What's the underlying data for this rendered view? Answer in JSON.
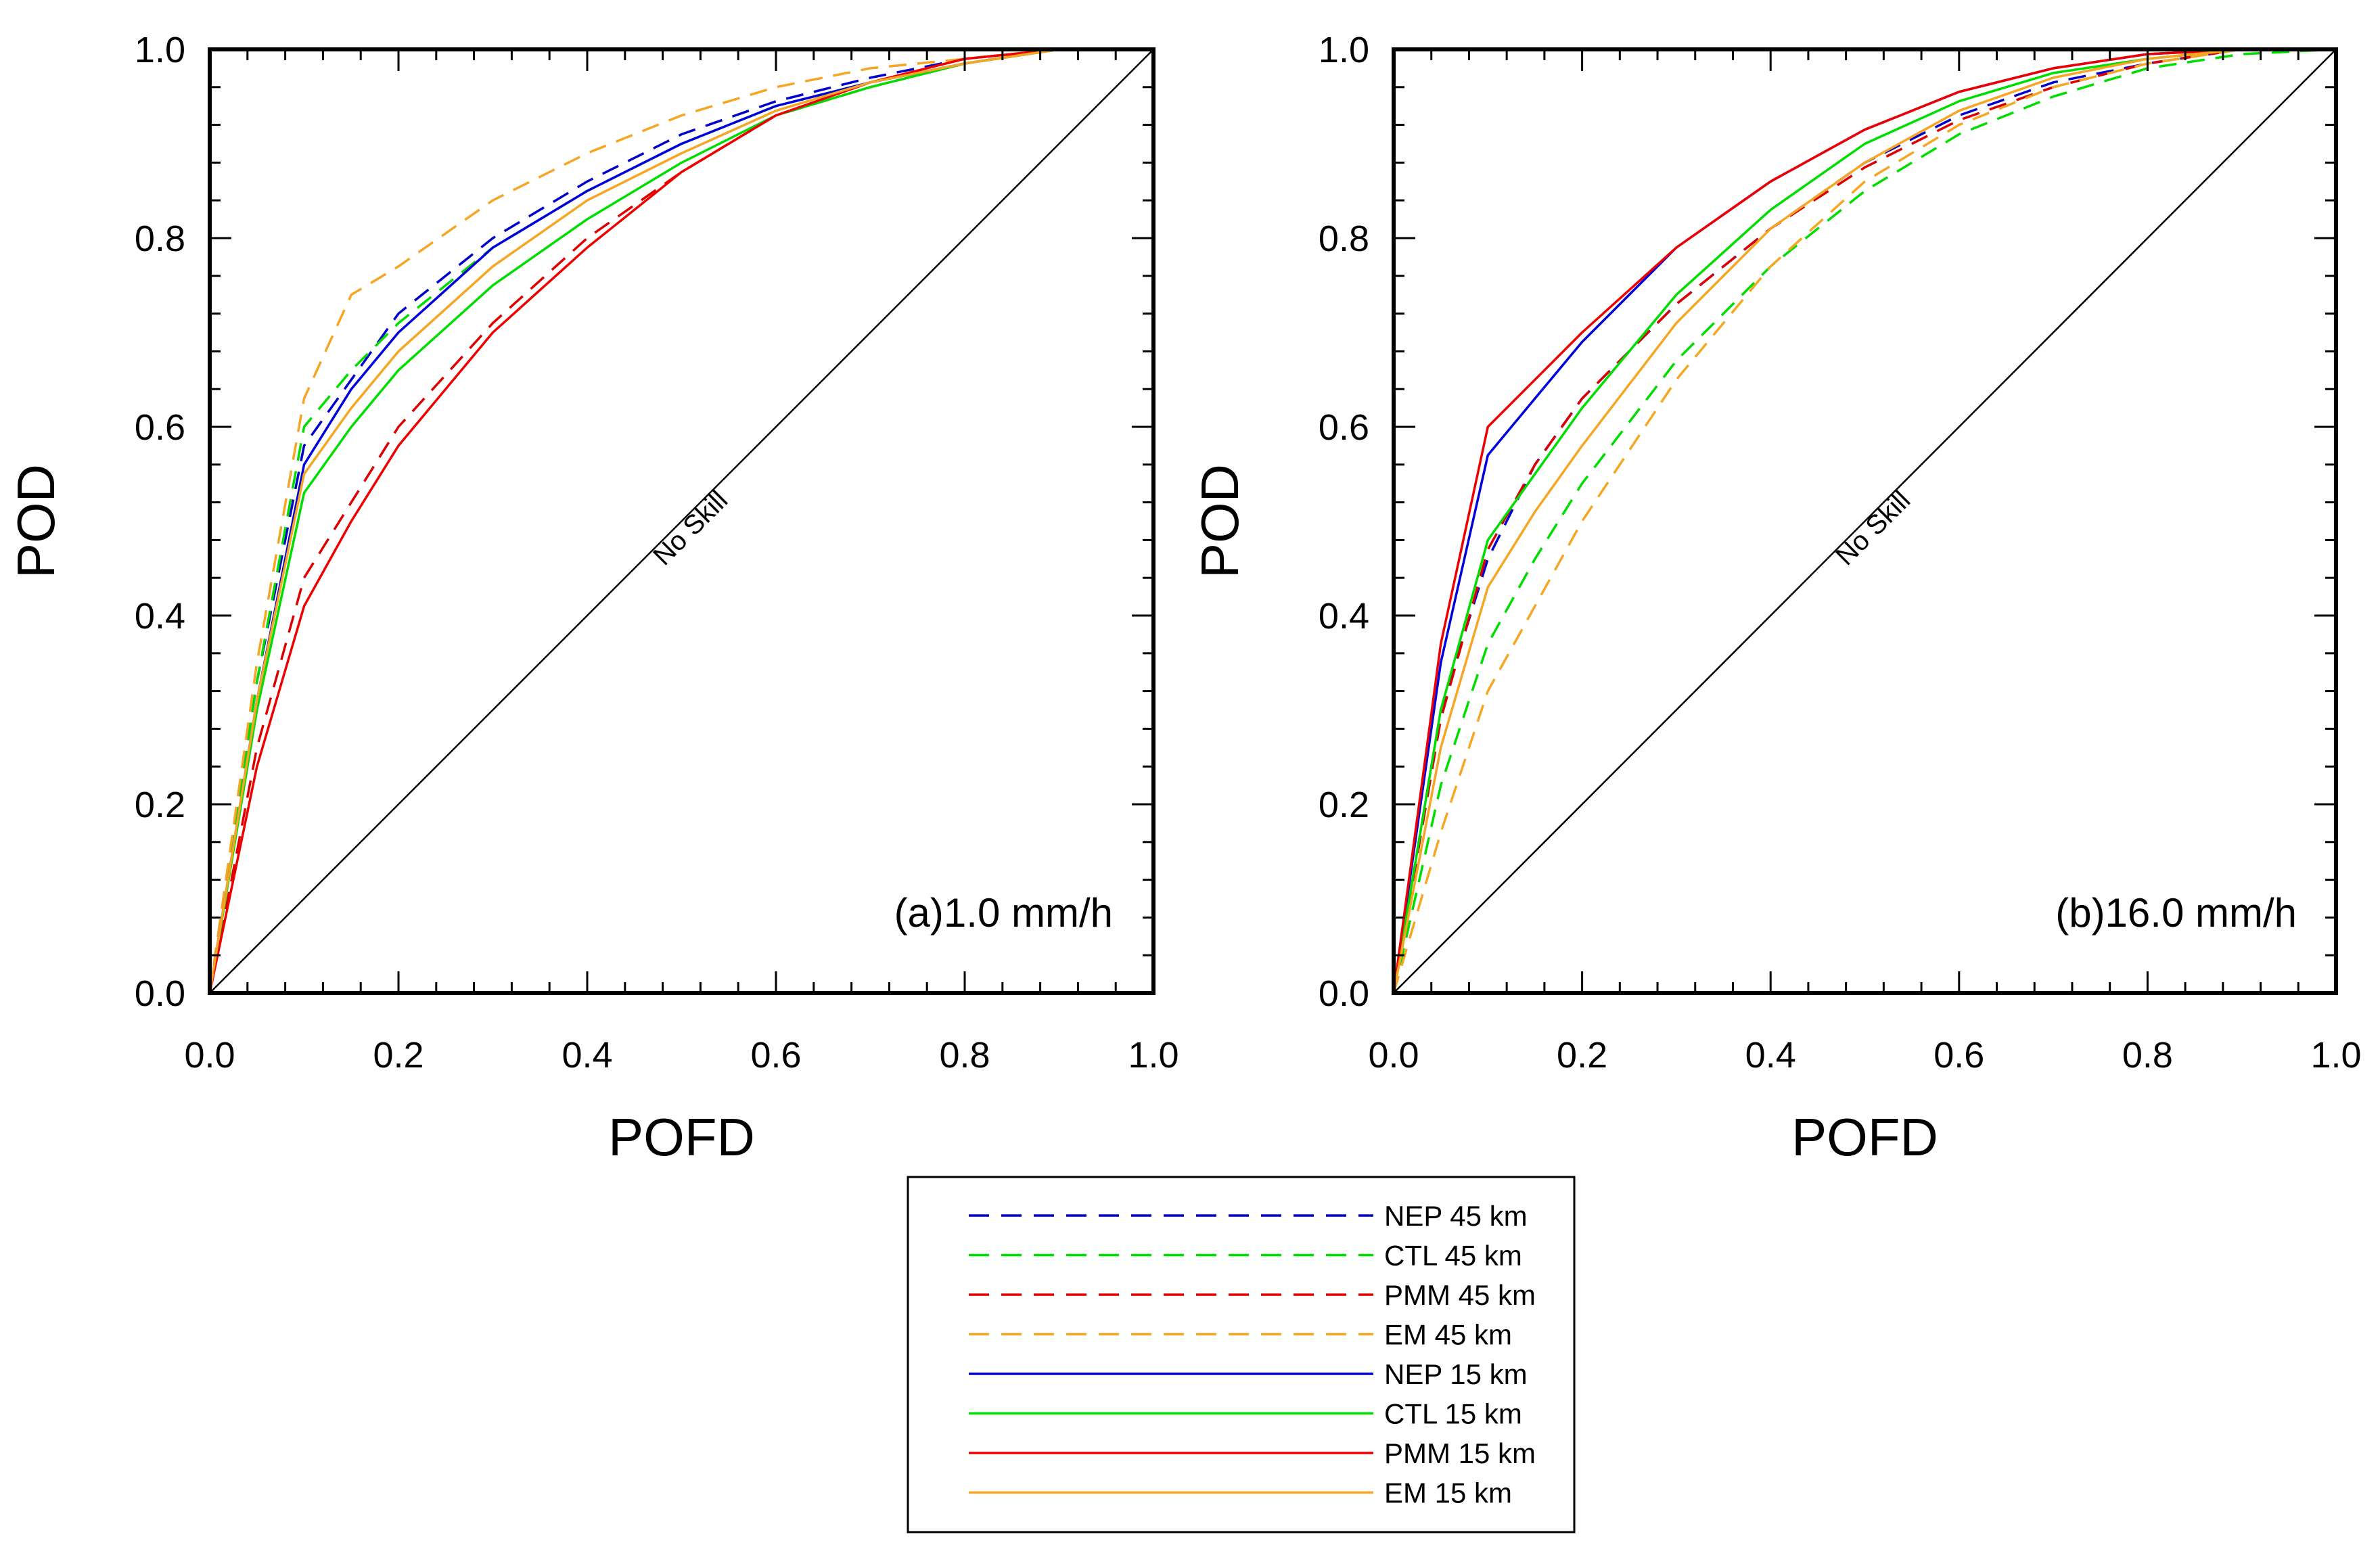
{
  "chart_data": [
    {
      "type": "line",
      "panel": "(a)1.0 mm/h",
      "xlabel": "POFD",
      "ylabel": "POD",
      "xlim": [
        0,
        1
      ],
      "ylim": [
        0,
        1
      ],
      "xticks": [
        "0.0",
        "0.2",
        "0.4",
        "0.6",
        "0.8",
        "1.0"
      ],
      "yticks": [
        "0.0",
        "0.2",
        "0.4",
        "0.6",
        "0.8",
        "1.0"
      ],
      "no_skill_label": "No Skill",
      "series": [
        {
          "name": "NEP 45 km",
          "color": "#0000cc",
          "dash": true,
          "x": [
            0,
            0.05,
            0.1,
            0.15,
            0.2,
            0.3,
            0.4,
            0.5,
            0.6,
            0.7,
            0.8,
            0.9,
            1.0
          ],
          "y": [
            0,
            0.33,
            0.58,
            0.65,
            0.72,
            0.8,
            0.86,
            0.91,
            0.945,
            0.97,
            0.99,
            1.0,
            1.0
          ]
        },
        {
          "name": "CTL 45 km",
          "color": "#00dd00",
          "dash": true,
          "x": [
            0,
            0.05,
            0.1,
            0.15,
            0.2,
            0.3,
            0.4,
            0.5,
            0.6,
            0.7,
            0.8,
            0.9,
            1.0
          ],
          "y": [
            0,
            0.33,
            0.6,
            0.66,
            0.71,
            0.79,
            0.85,
            0.9,
            0.94,
            0.965,
            0.985,
            1.0,
            1.0
          ]
        },
        {
          "name": "PMM 45 km",
          "color": "#dd0000",
          "dash": true,
          "x": [
            0,
            0.05,
            0.1,
            0.15,
            0.2,
            0.3,
            0.4,
            0.5,
            0.6,
            0.7,
            0.8,
            0.9,
            1.0
          ],
          "y": [
            0,
            0.26,
            0.44,
            0.52,
            0.6,
            0.71,
            0.8,
            0.87,
            0.93,
            0.96,
            0.985,
            1.0,
            1.0
          ]
        },
        {
          "name": "EM 45 km",
          "color": "#f5a623",
          "dash": true,
          "x": [
            0,
            0.05,
            0.1,
            0.15,
            0.2,
            0.3,
            0.4,
            0.5,
            0.6,
            0.7,
            0.8,
            0.9,
            1.0
          ],
          "y": [
            0,
            0.35,
            0.63,
            0.74,
            0.77,
            0.84,
            0.89,
            0.93,
            0.96,
            0.98,
            0.99,
            1.0,
            1.0
          ]
        },
        {
          "name": "NEP 15 km",
          "color": "#0000dd",
          "dash": false,
          "x": [
            0,
            0.05,
            0.1,
            0.15,
            0.2,
            0.3,
            0.4,
            0.5,
            0.6,
            0.7,
            0.8,
            0.9,
            1.0
          ],
          "y": [
            0,
            0.31,
            0.56,
            0.64,
            0.7,
            0.79,
            0.85,
            0.9,
            0.94,
            0.965,
            0.985,
            1.0,
            1.0
          ]
        },
        {
          "name": "CTL 15 km",
          "color": "#00dd00",
          "dash": false,
          "x": [
            0,
            0.05,
            0.1,
            0.15,
            0.2,
            0.3,
            0.4,
            0.5,
            0.6,
            0.7,
            0.8,
            0.9,
            1.0
          ],
          "y": [
            0,
            0.3,
            0.53,
            0.6,
            0.66,
            0.75,
            0.82,
            0.88,
            0.93,
            0.96,
            0.985,
            1.0,
            1.0
          ]
        },
        {
          "name": "PMM 15 km",
          "color": "#ee0000",
          "dash": false,
          "x": [
            0,
            0.05,
            0.1,
            0.15,
            0.2,
            0.3,
            0.4,
            0.5,
            0.6,
            0.7,
            0.8,
            0.9,
            1.0
          ],
          "y": [
            0,
            0.24,
            0.41,
            0.5,
            0.58,
            0.7,
            0.79,
            0.87,
            0.93,
            0.965,
            0.99,
            1.0,
            1.0
          ]
        },
        {
          "name": "EM 15 km",
          "color": "#f5a623",
          "dash": false,
          "x": [
            0,
            0.05,
            0.1,
            0.15,
            0.2,
            0.3,
            0.4,
            0.5,
            0.6,
            0.7,
            0.8,
            0.9,
            1.0
          ],
          "y": [
            0,
            0.31,
            0.55,
            0.62,
            0.68,
            0.77,
            0.84,
            0.89,
            0.935,
            0.965,
            0.985,
            1.0,
            1.0
          ]
        }
      ]
    },
    {
      "type": "line",
      "panel": "(b)16.0 mm/h",
      "xlabel": "POFD",
      "ylabel": "POD",
      "xlim": [
        0,
        1
      ],
      "ylim": [
        0,
        1
      ],
      "xticks": [
        "0.0",
        "0.2",
        "0.4",
        "0.6",
        "0.8",
        "1.0"
      ],
      "yticks": [
        "0.0",
        "0.2",
        "0.4",
        "0.6",
        "0.8",
        "1.0"
      ],
      "no_skill_label": "No Skill",
      "series": [
        {
          "name": "NEP 45 km",
          "color": "#0000cc",
          "dash": true,
          "x": [
            0,
            0.05,
            0.1,
            0.15,
            0.2,
            0.3,
            0.4,
            0.5,
            0.6,
            0.7,
            0.8,
            0.9,
            1.0
          ],
          "y": [
            0,
            0.3,
            0.46,
            0.56,
            0.63,
            0.73,
            0.81,
            0.88,
            0.93,
            0.965,
            0.985,
            1.0,
            1.0
          ]
        },
        {
          "name": "CTL 45 km",
          "color": "#00dd00",
          "dash": true,
          "x": [
            0,
            0.05,
            0.1,
            0.15,
            0.2,
            0.3,
            0.4,
            0.5,
            0.6,
            0.7,
            0.8,
            0.9,
            1.0
          ],
          "y": [
            0,
            0.22,
            0.37,
            0.46,
            0.54,
            0.67,
            0.77,
            0.85,
            0.91,
            0.95,
            0.98,
            0.995,
            1.0
          ]
        },
        {
          "name": "PMM 45 km",
          "color": "#dd0000",
          "dash": true,
          "x": [
            0,
            0.05,
            0.1,
            0.15,
            0.2,
            0.3,
            0.4,
            0.5,
            0.6,
            0.7,
            0.8,
            0.9,
            1.0
          ],
          "y": [
            0,
            0.29,
            0.47,
            0.56,
            0.63,
            0.73,
            0.81,
            0.875,
            0.925,
            0.96,
            0.985,
            1.0,
            1.0
          ]
        },
        {
          "name": "EM 45 km",
          "color": "#f5a623",
          "dash": true,
          "x": [
            0,
            0.05,
            0.1,
            0.15,
            0.2,
            0.3,
            0.4,
            0.5,
            0.6,
            0.7,
            0.8,
            0.9,
            1.0
          ],
          "y": [
            0,
            0.17,
            0.32,
            0.41,
            0.5,
            0.65,
            0.77,
            0.86,
            0.92,
            0.96,
            0.985,
            1.0,
            1.0
          ]
        },
        {
          "name": "NEP 15 km",
          "color": "#0000dd",
          "dash": false,
          "x": [
            0,
            0.05,
            0.1,
            0.15,
            0.2,
            0.3,
            0.4,
            0.5,
            0.6,
            0.7,
            0.8,
            0.9,
            1.0
          ],
          "y": [
            0,
            0.35,
            0.57,
            0.63,
            0.69,
            0.79,
            0.86,
            0.915,
            0.955,
            0.98,
            0.995,
            1.0,
            1.0
          ]
        },
        {
          "name": "CTL 15 km",
          "color": "#00dd00",
          "dash": false,
          "x": [
            0,
            0.05,
            0.1,
            0.15,
            0.2,
            0.3,
            0.4,
            0.5,
            0.6,
            0.7,
            0.8,
            0.9,
            1.0
          ],
          "y": [
            0,
            0.3,
            0.48,
            0.55,
            0.62,
            0.74,
            0.83,
            0.9,
            0.945,
            0.975,
            0.99,
            1.0,
            1.0
          ]
        },
        {
          "name": "PMM 15 km",
          "color": "#ee0000",
          "dash": false,
          "x": [
            0,
            0.05,
            0.1,
            0.15,
            0.2,
            0.3,
            0.4,
            0.5,
            0.6,
            0.7,
            0.8,
            0.9,
            1.0
          ],
          "y": [
            0,
            0.37,
            0.6,
            0.65,
            0.7,
            0.79,
            0.86,
            0.915,
            0.955,
            0.98,
            0.995,
            1.0,
            1.0
          ]
        },
        {
          "name": "EM 15 km",
          "color": "#f5a623",
          "dash": false,
          "x": [
            0,
            0.05,
            0.1,
            0.15,
            0.2,
            0.3,
            0.4,
            0.5,
            0.6,
            0.7,
            0.8,
            0.9,
            1.0
          ],
          "y": [
            0,
            0.26,
            0.43,
            0.51,
            0.58,
            0.71,
            0.81,
            0.88,
            0.935,
            0.97,
            0.99,
            1.0,
            1.0
          ]
        }
      ]
    }
  ],
  "legend": {
    "entries": [
      {
        "label": "NEP 45 km",
        "color": "#0000cc",
        "dash": true
      },
      {
        "label": "CTL 45 km",
        "color": "#00dd00",
        "dash": true
      },
      {
        "label": "PMM 45 km",
        "color": "#dd0000",
        "dash": true
      },
      {
        "label": "EM 45 km",
        "color": "#f5a623",
        "dash": true
      },
      {
        "label": "NEP 15 km",
        "color": "#0000dd",
        "dash": false
      },
      {
        "label": "CTL 15 km",
        "color": "#00dd00",
        "dash": false
      },
      {
        "label": "PMM 15 km",
        "color": "#ee0000",
        "dash": false
      },
      {
        "label": "EM 15 km",
        "color": "#f5a623",
        "dash": false
      }
    ]
  }
}
